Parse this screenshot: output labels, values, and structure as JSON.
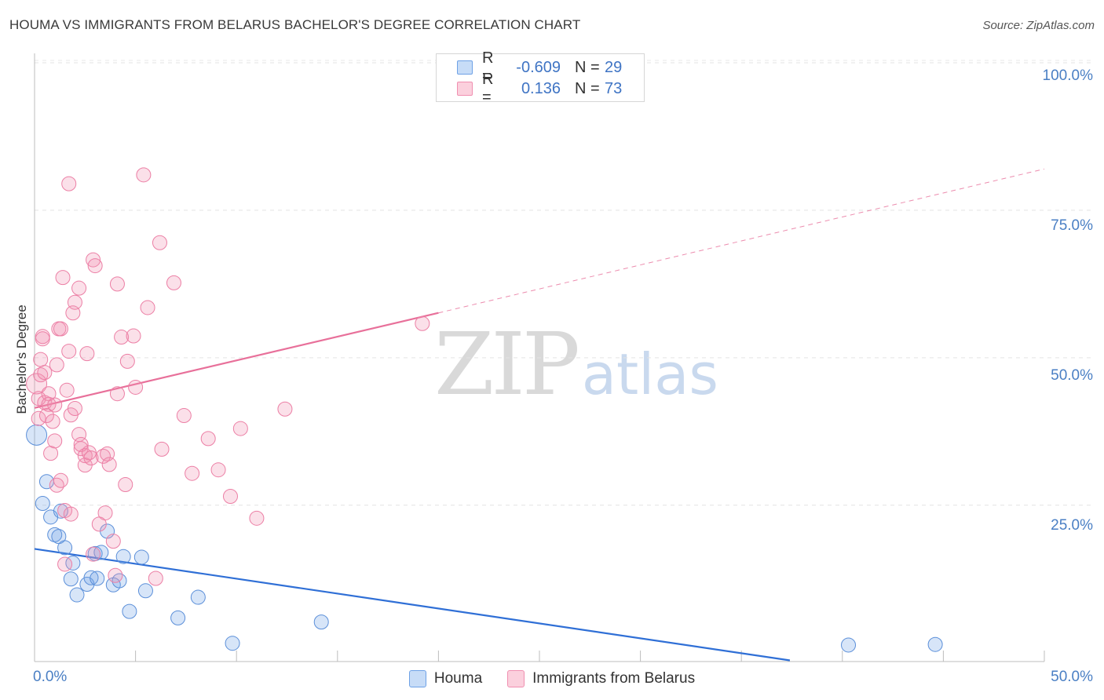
{
  "header": {
    "title": "HOUMA VS IMMIGRANTS FROM BELARUS BACHELOR'S DEGREE CORRELATION CHART",
    "source": "Source: ZipAtlas.com"
  },
  "watermark": {
    "zip": "ZIP",
    "atlas": "atlas"
  },
  "stats": {
    "rows": [
      {
        "r_label": "R =",
        "r_value": "-0.609",
        "n_label": "N =",
        "n_value": "29",
        "color": "#6ea1e6"
      },
      {
        "r_label": "R =",
        "r_value": "0.136",
        "n_label": "N =",
        "n_value": "73",
        "color": "#f08fb0"
      }
    ]
  },
  "legend": {
    "items": [
      {
        "label": "Houma",
        "color": "#6ea1e6"
      },
      {
        "label": "Immigrants from Belarus",
        "color": "#f08fb0"
      }
    ]
  },
  "axes": {
    "ylabel": "Bachelor's Degree",
    "yticks": [
      "100.0%",
      "75.0%",
      "50.0%",
      "25.0%"
    ],
    "xtick_left": "0.0%",
    "xtick_right": "50.0%"
  },
  "chart_data": {
    "type": "scatter",
    "title": "HOUMA VS IMMIGRANTS FROM BELARUS BACHELOR'S DEGREE CORRELATION CHART",
    "xlabel": "",
    "ylabel": "Bachelor's Degree",
    "xlim": [
      0,
      50
    ],
    "ylim": [
      -1.5,
      100
    ],
    "grid": true,
    "legend_position": "bottom-center",
    "series": [
      {
        "name": "Houma",
        "color": "#6ea1e6",
        "R": -0.609,
        "N": 29,
        "trend": {
          "x0": 0,
          "y0": 17.6,
          "x1": 37.4,
          "y1": -1.3,
          "dashed_extension": false
        },
        "points": [
          [
            0.1,
            36.9
          ],
          [
            0.4,
            25.3
          ],
          [
            0.6,
            29.0
          ],
          [
            0.8,
            23.0
          ],
          [
            1.0,
            20.0
          ],
          [
            1.2,
            19.7
          ],
          [
            1.3,
            24.0
          ],
          [
            1.5,
            17.8
          ],
          [
            1.8,
            12.5
          ],
          [
            1.9,
            15.2
          ],
          [
            2.1,
            9.8
          ],
          [
            2.6,
            11.6
          ],
          [
            2.8,
            12.7
          ],
          [
            3.0,
            16.8
          ],
          [
            3.1,
            12.6
          ],
          [
            3.3,
            17.0
          ],
          [
            3.6,
            20.6
          ],
          [
            3.9,
            11.5
          ],
          [
            4.2,
            12.2
          ],
          [
            4.4,
            16.3
          ],
          [
            4.7,
            7.0
          ],
          [
            5.3,
            16.2
          ],
          [
            5.5,
            10.5
          ],
          [
            7.1,
            5.9
          ],
          [
            8.1,
            9.4
          ],
          [
            9.8,
            1.6
          ],
          [
            14.2,
            5.2
          ],
          [
            40.3,
            1.3
          ],
          [
            44.6,
            1.4
          ]
        ]
      },
      {
        "name": "Immigrants from Belarus",
        "color": "#f08fb0",
        "R": 0.136,
        "N": 73,
        "trend": {
          "x0": 0,
          "y0": 41.5,
          "x1": 20.0,
          "y1": 57.6,
          "dashed_to_x": 50,
          "dashed_to_y": 82.0
        },
        "points": [
          [
            0.1,
            45.6
          ],
          [
            0.2,
            43.1
          ],
          [
            0.2,
            39.7
          ],
          [
            0.3,
            49.7
          ],
          [
            0.3,
            47.1
          ],
          [
            0.4,
            53.6
          ],
          [
            0.4,
            53.2
          ],
          [
            0.5,
            47.5
          ],
          [
            0.5,
            42.4
          ],
          [
            0.6,
            40.2
          ],
          [
            0.7,
            43.9
          ],
          [
            0.7,
            42.1
          ],
          [
            0.8,
            33.8
          ],
          [
            0.9,
            39.2
          ],
          [
            1.0,
            42.0
          ],
          [
            1.0,
            35.9
          ],
          [
            1.1,
            48.8
          ],
          [
            1.1,
            28.4
          ],
          [
            1.2,
            54.9
          ],
          [
            1.3,
            54.9
          ],
          [
            1.3,
            29.2
          ],
          [
            1.4,
            63.6
          ],
          [
            1.5,
            24.1
          ],
          [
            1.5,
            15.0
          ],
          [
            1.6,
            44.5
          ],
          [
            1.7,
            51.1
          ],
          [
            1.7,
            79.5
          ],
          [
            1.8,
            23.5
          ],
          [
            1.8,
            40.3
          ],
          [
            1.9,
            57.6
          ],
          [
            2.0,
            59.4
          ],
          [
            2.0,
            41.4
          ],
          [
            2.2,
            37.0
          ],
          [
            2.2,
            61.8
          ],
          [
            2.3,
            34.6
          ],
          [
            2.3,
            35.3
          ],
          [
            2.5,
            33.4
          ],
          [
            2.5,
            31.8
          ],
          [
            2.6,
            50.7
          ],
          [
            2.7,
            33.9
          ],
          [
            2.8,
            33.0
          ],
          [
            2.9,
            66.6
          ],
          [
            2.9,
            16.7
          ],
          [
            3.0,
            65.6
          ],
          [
            3.2,
            21.8
          ],
          [
            3.4,
            33.3
          ],
          [
            3.5,
            23.7
          ],
          [
            3.6,
            33.7
          ],
          [
            3.7,
            31.9
          ],
          [
            3.9,
            18.9
          ],
          [
            4.0,
            13.1
          ],
          [
            4.1,
            62.5
          ],
          [
            4.1,
            43.9
          ],
          [
            4.3,
            53.5
          ],
          [
            4.5,
            28.5
          ],
          [
            4.6,
            49.4
          ],
          [
            4.9,
            53.7
          ],
          [
            5.0,
            45.0
          ],
          [
            5.4,
            81.0
          ],
          [
            5.6,
            58.5
          ],
          [
            6.0,
            12.6
          ],
          [
            6.2,
            69.5
          ],
          [
            6.3,
            34.5
          ],
          [
            6.9,
            62.7
          ],
          [
            7.4,
            40.2
          ],
          [
            7.8,
            30.4
          ],
          [
            8.6,
            36.3
          ],
          [
            9.1,
            31.0
          ],
          [
            9.7,
            26.5
          ],
          [
            10.2,
            38.0
          ],
          [
            11.0,
            22.8
          ],
          [
            12.4,
            41.3
          ],
          [
            19.2,
            55.8
          ]
        ]
      }
    ]
  }
}
